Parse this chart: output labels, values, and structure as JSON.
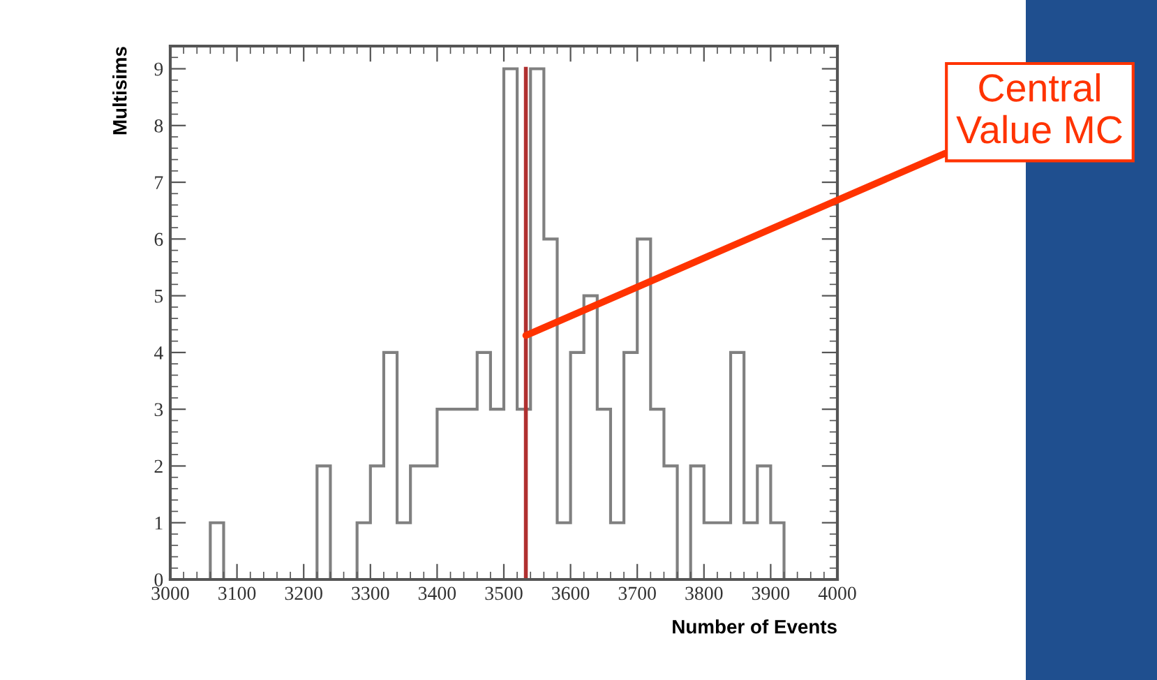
{
  "chart_data": {
    "type": "histogram",
    "xlabel": "Number of Events",
    "ylabel": "Multisims",
    "bins": [
      3000,
      3020,
      3040,
      3060,
      3080,
      3100,
      3120,
      3140,
      3160,
      3180,
      3200,
      3220,
      3240,
      3260,
      3280,
      3300,
      3320,
      3340,
      3360,
      3380,
      3400,
      3420,
      3440,
      3460,
      3480,
      3500,
      3520,
      3540,
      3560,
      3580,
      3600,
      3620,
      3640,
      3660,
      3680,
      3700,
      3720,
      3740,
      3760,
      3780,
      3800,
      3820,
      3840,
      3860,
      3880,
      3900,
      3920,
      3940,
      3960,
      3980,
      4000
    ],
    "values": [
      0,
      0,
      0,
      1,
      0,
      0,
      0,
      0,
      0,
      0,
      0,
      2,
      0,
      0,
      1,
      2,
      4,
      1,
      2,
      2,
      3,
      3,
      3,
      4,
      3,
      9,
      3,
      9,
      6,
      1,
      4,
      5,
      3,
      1,
      4,
      6,
      3,
      2,
      0,
      2,
      1,
      1,
      4,
      1,
      2,
      1,
      0,
      0,
      0,
      0
    ],
    "color": "#808080",
    "xlim": [
      3000,
      4000
    ],
    "xticks": [
      3000,
      3100,
      3200,
      3300,
      3400,
      3500,
      3600,
      3700,
      3800,
      3900,
      4000
    ],
    "ylim": [
      0,
      9.4
    ],
    "yticks": [
      0,
      1,
      2,
      3,
      4,
      5,
      6,
      7,
      8,
      9
    ],
    "ref_lines": [
      {
        "axis": "x",
        "value": 3533,
        "color": "#b03030"
      }
    ],
    "annotations": [
      {
        "text": "Central\nValue MC",
        "x": 3533,
        "y": 4.3
      }
    ],
    "grid": false,
    "legend": false
  }
}
